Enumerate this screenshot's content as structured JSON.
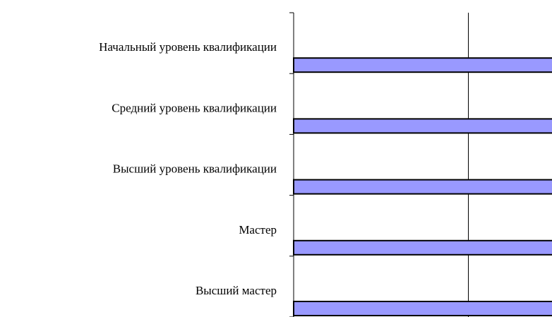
{
  "chart_data": {
    "type": "bar",
    "orientation": "horizontal",
    "categories": [
      "Начальный уровень квалификации",
      "Средний уровень квалификации",
      "Высший уровень квалификации",
      "Мастер",
      "Высший мастер"
    ],
    "series": [
      {
        "values": [
          1,
          1,
          1,
          1,
          1
        ]
      }
    ],
    "xlim": [
      0,
      1
    ],
    "grid": true,
    "legend": "none",
    "colors": {
      "bar_fill": "#9999ff",
      "bar_stroke": "#000000",
      "axis": "#000000",
      "gridline": "#000000",
      "background": "#ffffff"
    }
  }
}
